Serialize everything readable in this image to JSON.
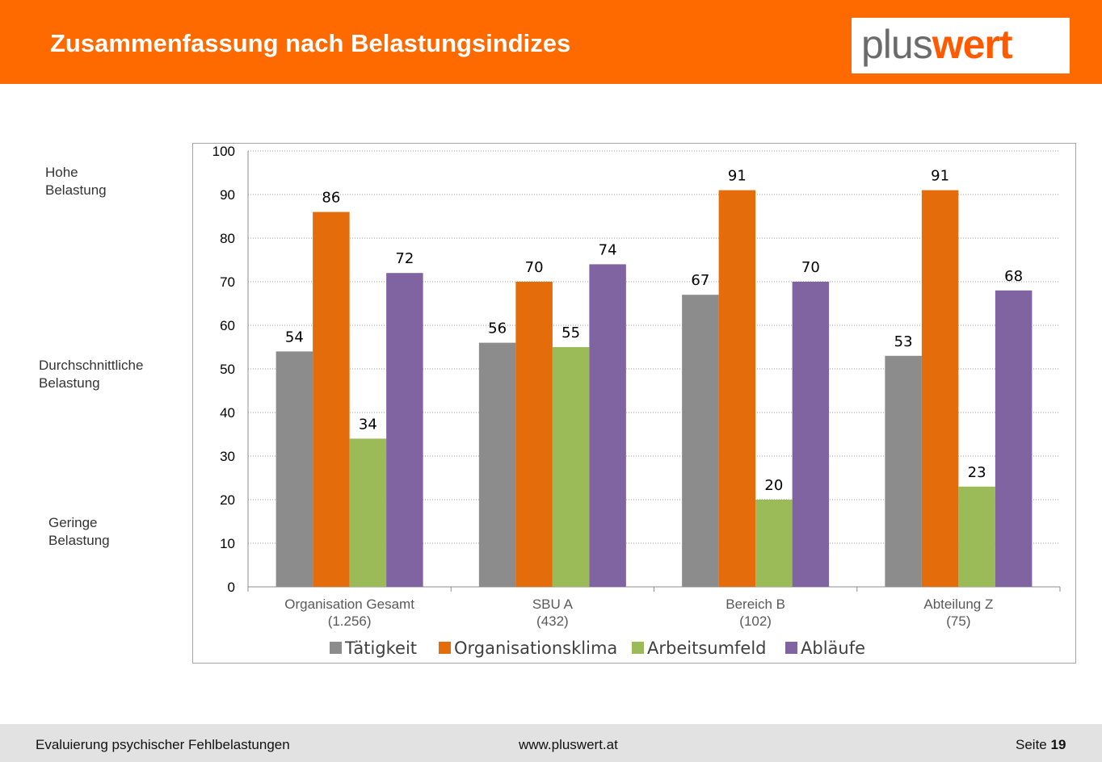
{
  "header": {
    "title": "Zusammenfassung nach Belastungsindizes",
    "logo_part1": "plus",
    "logo_part2": "wert"
  },
  "side_labels": {
    "high": [
      "Hohe",
      "Belastung"
    ],
    "mid": [
      "Durchschnittliche",
      "Belastung"
    ],
    "low": [
      "Geringe",
      "Belastung"
    ]
  },
  "chart_data": {
    "type": "bar",
    "categories": [
      "Organisation Gesamt",
      "SBU A",
      "Bereich B",
      "Abteilung Z"
    ],
    "category_counts": [
      "(1.256)",
      "(432)",
      "(102)",
      "(75)"
    ],
    "series": [
      {
        "name": "Tätigkeit",
        "color": "#8c8c8c",
        "values": [
          54,
          56,
          67,
          53
        ]
      },
      {
        "name": "Organisationsklima",
        "color": "#e46c0a",
        "values": [
          86,
          70,
          91,
          91
        ]
      },
      {
        "name": "Arbeitsumfeld",
        "color": "#9bbb59",
        "values": [
          34,
          55,
          20,
          23
        ]
      },
      {
        "name": "Abläufe",
        "color": "#8064a2",
        "values": [
          72,
          74,
          70,
          68
        ]
      }
    ],
    "ylim": [
      0,
      100
    ],
    "yticks": [
      0,
      10,
      20,
      30,
      40,
      50,
      60,
      70,
      80,
      90,
      100
    ],
    "grid": true,
    "legend_position": "bottom"
  },
  "footer": {
    "left": "Evaluierung psychischer Fehlbelastungen",
    "center": "www.pluswert.at",
    "page_label": "Seite",
    "page_number": "19"
  }
}
